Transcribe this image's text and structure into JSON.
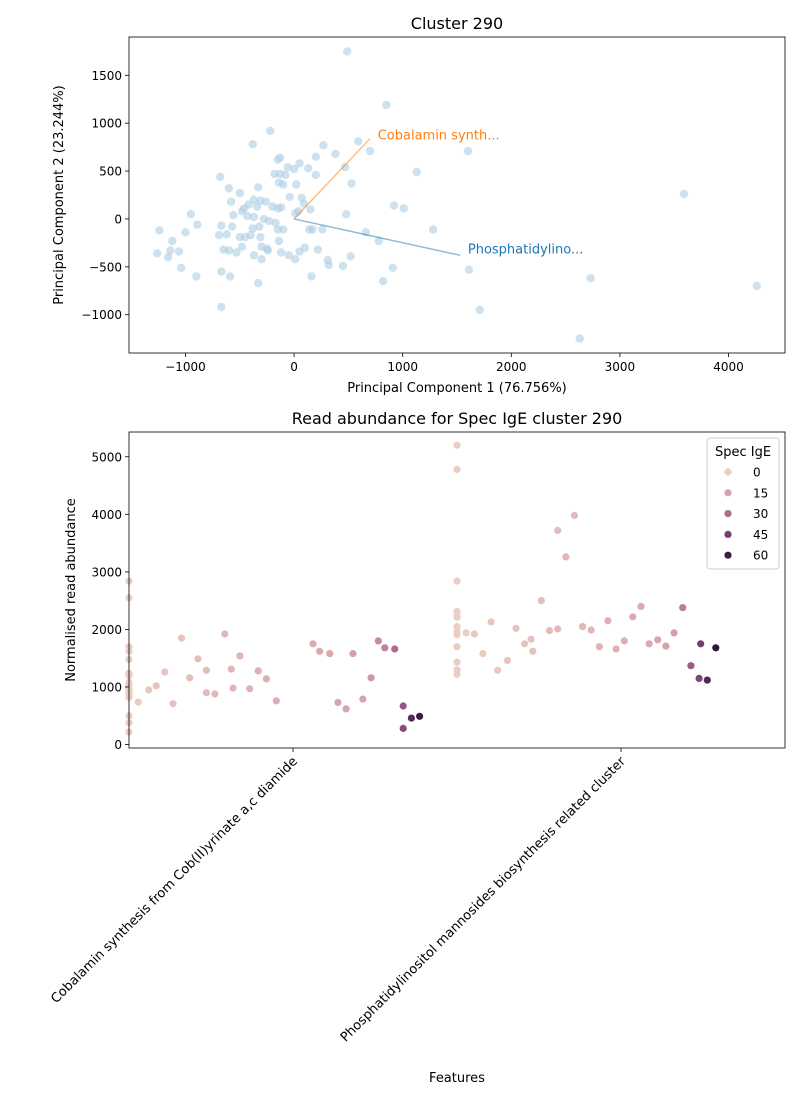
{
  "chart_data": [
    {
      "type": "scatter",
      "title": "Cluster 290",
      "xlabel": "Principal Component 1 (76.756%)",
      "ylabel": "Principal Component 2 (23.244%)",
      "xlim": [
        -1520,
        4520
      ],
      "ylim": [
        -1400,
        1900
      ],
      "xticks": [
        -1000,
        0,
        1000,
        2000,
        3000,
        4000
      ],
      "xtick_labels": [
        "−1000",
        "0",
        "1000",
        "2000",
        "3000",
        "4000"
      ],
      "yticks": [
        -1000,
        -500,
        0,
        500,
        1000,
        1500
      ],
      "ytick_labels": [
        "−1000",
        "−500",
        "0",
        "500",
        "1000",
        "1500"
      ],
      "point_color": "#aecde3",
      "points": [
        [
          490,
          1750
        ],
        [
          850,
          1190
        ],
        [
          590,
          810
        ],
        [
          700,
          710
        ],
        [
          1600,
          710
        ],
        [
          -220,
          920
        ],
        [
          -380,
          780
        ],
        [
          270,
          770
        ],
        [
          380,
          680
        ],
        [
          -150,
          620
        ],
        [
          -130,
          640
        ],
        [
          200,
          650
        ],
        [
          -60,
          540
        ],
        [
          50,
          580
        ],
        [
          0,
          520
        ],
        [
          470,
          540
        ],
        [
          130,
          530
        ],
        [
          -80,
          460
        ],
        [
          -680,
          440
        ],
        [
          -130,
          470
        ],
        [
          -180,
          470
        ],
        [
          200,
          460
        ],
        [
          1130,
          490
        ],
        [
          -140,
          380
        ],
        [
          -100,
          360
        ],
        [
          20,
          360
        ],
        [
          -600,
          320
        ],
        [
          -330,
          330
        ],
        [
          530,
          370
        ],
        [
          -500,
          270
        ],
        [
          -580,
          180
        ],
        [
          -370,
          200
        ],
        [
          -310,
          190
        ],
        [
          -260,
          180
        ],
        [
          -420,
          150
        ],
        [
          -340,
          130
        ],
        [
          -200,
          130
        ],
        [
          -150,
          110
        ],
        [
          -120,
          120
        ],
        [
          70,
          220
        ],
        [
          -40,
          230
        ],
        [
          90,
          160
        ],
        [
          150,
          100
        ],
        [
          40,
          80
        ],
        [
          10,
          60
        ],
        [
          -460,
          110
        ],
        [
          -480,
          80
        ],
        [
          -560,
          40
        ],
        [
          -430,
          30
        ],
        [
          -370,
          20
        ],
        [
          -280,
          0
        ],
        [
          -230,
          -20
        ],
        [
          -170,
          -40
        ],
        [
          -320,
          -80
        ],
        [
          -380,
          -100
        ],
        [
          -400,
          -170
        ],
        [
          -310,
          -190
        ],
        [
          -450,
          -190
        ],
        [
          -500,
          -190
        ],
        [
          -570,
          -80
        ],
        [
          -670,
          -70
        ],
        [
          -690,
          -170
        ],
        [
          -620,
          -160
        ],
        [
          -650,
          -320
        ],
        [
          -600,
          -330
        ],
        [
          -480,
          -290
        ],
        [
          -530,
          -350
        ],
        [
          -370,
          -380
        ],
        [
          -300,
          -290
        ],
        [
          -250,
          -310
        ],
        [
          -300,
          -420
        ],
        [
          -240,
          -330
        ],
        [
          -150,
          -110
        ],
        [
          -140,
          -230
        ],
        [
          -100,
          -110
        ],
        [
          -120,
          -350
        ],
        [
          -50,
          -380
        ],
        [
          10,
          -420
        ],
        [
          50,
          -340
        ],
        [
          100,
          -300
        ],
        [
          140,
          -110
        ],
        [
          170,
          -110
        ],
        [
          220,
          -320
        ],
        [
          260,
          -110
        ],
        [
          310,
          -430
        ],
        [
          320,
          -480
        ],
        [
          450,
          -490
        ],
        [
          520,
          -390
        ],
        [
          660,
          -140
        ],
        [
          780,
          -230
        ],
        [
          480,
          50
        ],
        [
          920,
          140
        ],
        [
          1010,
          110
        ],
        [
          1280,
          -110
        ],
        [
          910,
          -510
        ],
        [
          820,
          -650
        ],
        [
          160,
          -600
        ],
        [
          -330,
          -670
        ],
        [
          -590,
          -600
        ],
        [
          -670,
          -550
        ],
        [
          -670,
          -920
        ],
        [
          -900,
          -600
        ],
        [
          -1040,
          -510
        ],
        [
          -1060,
          -340
        ],
        [
          -1160,
          -400
        ],
        [
          -1120,
          -230
        ],
        [
          -1240,
          -120
        ],
        [
          -1260,
          -360
        ],
        [
          -1140,
          -330
        ],
        [
          -1000,
          -140
        ],
        [
          -950,
          50
        ],
        [
          -890,
          -60
        ],
        [
          1610,
          -530
        ],
        [
          1710,
          -950
        ],
        [
          2630,
          -1250
        ],
        [
          2730,
          -620
        ],
        [
          3590,
          260
        ],
        [
          4260,
          -700
        ]
      ],
      "loadings": [
        {
          "label": "Cobalamin synth...",
          "x": 700,
          "y": 840,
          "color": "#ff7f0e",
          "alpha": 0.5,
          "label_x": 770,
          "label_y": 870
        },
        {
          "label": "Phosphatidylino...",
          "x": 1530,
          "y": -380,
          "color": "#1f77b4",
          "alpha": 0.5,
          "label_x": 1600,
          "label_y": -320
        }
      ]
    },
    {
      "type": "scatter",
      "title": "Read abundance for Spec IgE cluster 290",
      "xlabel": "Features",
      "ylabel": "Normalised read abundance",
      "categories": [
        "Cobalamin synthesis from Cob(II)yrinate a,c diamide",
        "Phosphatidylinositol mannosides biosynthesis related cluster"
      ],
      "ylim": [
        -60,
        5430
      ],
      "yticks": [
        0,
        1000,
        2000,
        3000,
        4000,
        5000
      ],
      "ytick_labels": [
        "0",
        "1000",
        "2000",
        "3000",
        "4000",
        "5000"
      ],
      "hue_label": "Spec IgE",
      "legend": [
        {
          "label": "0",
          "value": 0
        },
        {
          "label": "15",
          "value": 15
        },
        {
          "label": "30",
          "value": 30
        },
        {
          "label": "45",
          "value": 45
        },
        {
          "label": "60",
          "value": 60
        }
      ],
      "hue_max": 63,
      "series": [
        {
          "category": 0,
          "points": [
            [
              -0.5,
              2840,
              0
            ],
            [
              -0.5,
              2550,
              0
            ],
            [
              -0.5,
              1700,
              0
            ],
            [
              -0.5,
              1620,
              0
            ],
            [
              -0.5,
              1480,
              0
            ],
            [
              -0.5,
              1240,
              0
            ],
            [
              -0.5,
              1200,
              0
            ],
            [
              -0.5,
              1080,
              0
            ],
            [
              -0.5,
              1030,
              0
            ],
            [
              -0.5,
              960,
              0
            ],
            [
              -0.5,
              920,
              0
            ],
            [
              -0.5,
              880,
              0
            ],
            [
              -0.5,
              820,
              0
            ],
            [
              -0.5,
              500,
              0
            ],
            [
              -0.5,
              380,
              0
            ],
            [
              -0.5,
              220,
              0
            ],
            [
              -0.472,
              740,
              1
            ],
            [
              -0.44,
              950,
              2
            ],
            [
              -0.417,
              1020,
              3
            ],
            [
              -0.391,
              1260,
              3
            ],
            [
              -0.366,
              710,
              4
            ],
            [
              -0.34,
              1850,
              4
            ],
            [
              -0.315,
              1160,
              5
            ],
            [
              -0.29,
              1490,
              5
            ],
            [
              -0.264,
              900,
              6
            ],
            [
              -0.264,
              1290,
              6
            ],
            [
              -0.208,
              1920,
              7
            ],
            [
              -0.238,
              880,
              7
            ],
            [
              -0.188,
              1310,
              8
            ],
            [
              -0.183,
              980,
              8
            ],
            [
              -0.162,
              1540,
              9
            ],
            [
              -0.132,
              970,
              9
            ],
            [
              -0.106,
              1280,
              10
            ],
            [
              -0.081,
              1140,
              11
            ],
            [
              -0.051,
              760,
              11
            ],
            [
              0.061,
              1750,
              12
            ],
            [
              0.081,
              1620,
              13
            ],
            [
              0.112,
              1580,
              13
            ],
            [
              0.137,
              730,
              14
            ],
            [
              0.162,
              620,
              14
            ],
            [
              0.183,
              1580,
              16
            ],
            [
              0.213,
              790,
              15
            ],
            [
              0.238,
              1160,
              18
            ],
            [
              0.26,
              1800,
              22
            ],
            [
              0.28,
              1680,
              24
            ],
            [
              0.31,
              1660,
              30
            ],
            [
              0.336,
              670,
              37
            ],
            [
              0.336,
              280,
              40
            ],
            [
              0.361,
              460,
              53
            ],
            [
              0.386,
              490,
              60
            ]
          ]
        },
        {
          "category": 1,
          "points": [
            [
              0.5,
              5200,
              0
            ],
            [
              0.5,
              4780,
              0
            ],
            [
              0.5,
              2840,
              0
            ],
            [
              0.5,
              2310,
              0
            ],
            [
              0.5,
              2260,
              0
            ],
            [
              0.5,
              2210,
              0
            ],
            [
              0.5,
              2050,
              0
            ],
            [
              0.5,
              1960,
              0
            ],
            [
              0.5,
              1910,
              0
            ],
            [
              0.5,
              1700,
              0
            ],
            [
              0.5,
              1430,
              0
            ],
            [
              0.5,
              1300,
              0
            ],
            [
              0.5,
              1220,
              0
            ],
            [
              0.528,
              1940,
              0
            ],
            [
              0.553,
              1920,
              1
            ],
            [
              0.579,
              1580,
              1
            ],
            [
              0.604,
              2130,
              2
            ],
            [
              0.624,
              1290,
              2
            ],
            [
              0.654,
              1460,
              3
            ],
            [
              0.68,
              2020,
              3
            ],
            [
              0.706,
              1750,
              4
            ],
            [
              0.726,
              1830,
              4
            ],
            [
              0.731,
              1620,
              5
            ],
            [
              0.757,
              2500,
              5
            ],
            [
              0.782,
              1980,
              6
            ],
            [
              0.807,
              3720,
              6
            ],
            [
              0.807,
              2010,
              6
            ],
            [
              0.832,
              3260,
              7
            ],
            [
              0.858,
              3980,
              7
            ],
            [
              0.883,
              2050,
              8
            ],
            [
              0.909,
              1990,
              8
            ],
            [
              0.934,
              1700,
              9
            ],
            [
              0.96,
              2150,
              10
            ],
            [
              0.985,
              1660,
              10
            ],
            [
              1.01,
              1800,
              11
            ],
            [
              1.036,
              2220,
              12
            ],
            [
              1.061,
              2400,
              13
            ],
            [
              1.086,
              1750,
              13
            ],
            [
              1.112,
              1820,
              14
            ],
            [
              1.137,
              1710,
              15
            ],
            [
              1.162,
              1940,
              16
            ],
            [
              1.188,
              2380,
              25
            ],
            [
              1.213,
              1370,
              35
            ],
            [
              1.238,
              1150,
              43
            ],
            [
              1.243,
              1750,
              45
            ],
            [
              1.263,
              1120,
              55
            ],
            [
              1.289,
              1680,
              63
            ]
          ]
        }
      ]
    }
  ]
}
